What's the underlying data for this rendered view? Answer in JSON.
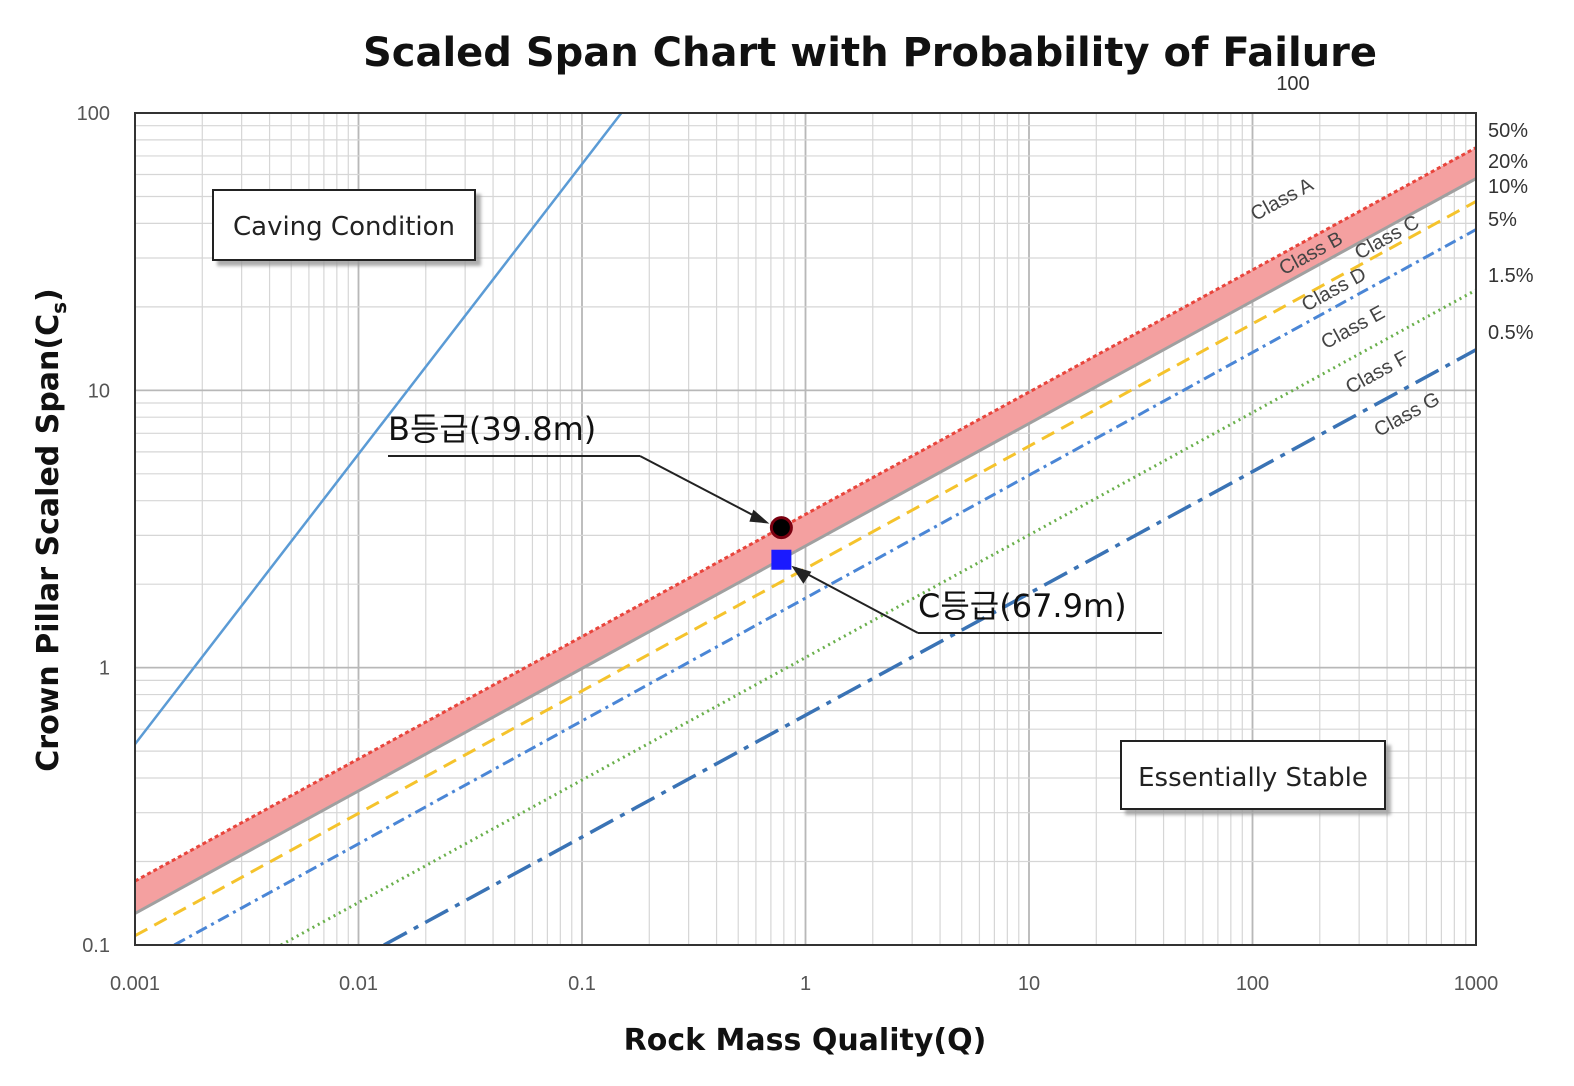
{
  "chart_data": {
    "type": "line",
    "title": "Scaled Span Chart with Probability of Failure",
    "xlabel": "Rock Mass Quality(Q)",
    "ylabel_main": "Crown Pillar Scaled Span(C",
    "ylabel_sub": "s",
    "ylabel_close": ")",
    "x_scale": "log",
    "y_scale": "log",
    "xlim": [
      0.001,
      1000
    ],
    "ylim": [
      0.1,
      100
    ],
    "x_ticks": [
      "0.001",
      "0.01",
      "0.1",
      "1",
      "10",
      "100",
      "1000"
    ],
    "y_ticks": [
      "0.1",
      "1",
      "10",
      "100"
    ],
    "grid": true,
    "top_line_label": "100",
    "series": [
      {
        "name": "Class A",
        "points": [
          [
            0.001,
            0.53
          ],
          [
            0.15,
            100
          ]
        ],
        "color": "#5b9bd5",
        "dash": "solid"
      },
      {
        "name": "Class B",
        "points": [
          [
            0.001,
            0.17
          ],
          [
            1000,
            75
          ]
        ],
        "color": "#e8453c",
        "dash": "4,3"
      },
      {
        "name": "Class C",
        "points": [
          [
            0.001,
            0.13
          ],
          [
            1000,
            58
          ]
        ],
        "color": "#a0a0a0",
        "dash": "solid"
      },
      {
        "name": "Class D",
        "points": [
          [
            0.001,
            0.108
          ],
          [
            1000,
            48
          ]
        ],
        "color": "#f5c32c",
        "dash": "14,8"
      },
      {
        "name": "Class E",
        "points": [
          [
            0.0015,
            0.1
          ],
          [
            1000,
            38
          ]
        ],
        "color": "#4a86d6",
        "dash": "12,5,3,5"
      },
      {
        "name": "Class F",
        "points": [
          [
            0.0045,
            0.1
          ],
          [
            1000,
            23
          ]
        ],
        "color": "#6ab04c",
        "dash": "2,4"
      },
      {
        "name": "Class G",
        "points": [
          [
            0.013,
            0.1
          ],
          [
            1000,
            14
          ]
        ],
        "color": "#3a73b5",
        "dash": "26,8,5,8"
      }
    ],
    "band": {
      "between": [
        "Class B",
        "Class C"
      ],
      "color": "#f4a0a0"
    },
    "probability_labels": [
      "50%",
      "20%",
      "10%",
      "5%",
      "1.5%",
      "0.5%"
    ],
    "points": [
      {
        "label": "B등급(39.8m)",
        "x": 0.78,
        "y": 3.2,
        "marker": "circle",
        "color": "#7a0010"
      },
      {
        "label": "C등급(67.9m)",
        "x": 0.78,
        "y": 2.45,
        "marker": "square",
        "color": "#1a1aff"
      }
    ],
    "region_labels": {
      "top_left": "Caving Condition",
      "bottom_right": "Essentially Stable"
    }
  }
}
